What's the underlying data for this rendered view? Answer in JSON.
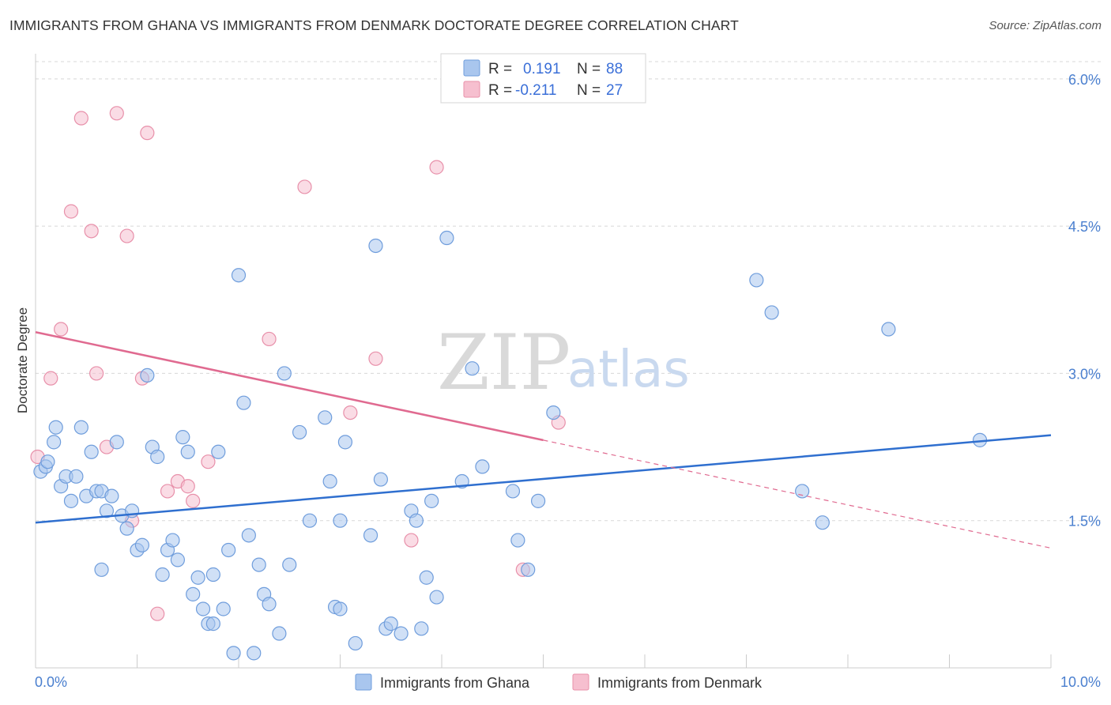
{
  "header": {
    "title": "IMMIGRANTS FROM GHANA VS IMMIGRANTS FROM DENMARK DOCTORATE DEGREE CORRELATION CHART",
    "source": "Source: ZipAtlas.com"
  },
  "watermark": {
    "zip": "ZIP",
    "atlas": "atlas"
  },
  "colors": {
    "ghana_fill": "#a9c6ee",
    "ghana_stroke": "#6f9ddc",
    "ghana_line": "#2f6fcf",
    "denmark_fill": "#f6bfcf",
    "denmark_stroke": "#e890aa",
    "denmark_line": "#e06a90",
    "grid": "#d8d8d8",
    "axis_text": "#4a7fcf"
  },
  "legend": {
    "rows": [
      {
        "r_label": "R =",
        "r_value": "0.191",
        "n_label": "N =",
        "n_value": "88"
      },
      {
        "r_label": "R =",
        "r_value": "-0.211",
        "n_label": "N =",
        "n_value": "27"
      }
    ]
  },
  "chart_data": {
    "type": "scatter",
    "title": "IMMIGRANTS FROM GHANA VS IMMIGRANTS FROM DENMARK DOCTORATE DEGREE CORRELATION CHART",
    "xlabel": "",
    "ylabel": "Doctorate Degree",
    "xlim": [
      0,
      10
    ],
    "ylim": [
      0,
      6.2
    ],
    "x_tick_labels": [
      "0.0%",
      "10.0%"
    ],
    "y_tick_labels": [
      "1.5%",
      "3.0%",
      "4.5%",
      "6.0%"
    ],
    "y_ticks": [
      1.5,
      3.0,
      4.5,
      6.0
    ],
    "grid": true,
    "legend_position": "top-center",
    "series": [
      {
        "name": "Immigrants from Ghana",
        "R": 0.191,
        "N": 88,
        "trend": {
          "x": [
            0,
            10
          ],
          "y": [
            1.48,
            2.37
          ]
        },
        "points": [
          [
            0.05,
            2.0
          ],
          [
            0.1,
            2.05
          ],
          [
            0.12,
            2.1
          ],
          [
            0.18,
            2.3
          ],
          [
            0.2,
            2.45
          ],
          [
            0.25,
            1.85
          ],
          [
            0.3,
            1.95
          ],
          [
            0.35,
            1.7
          ],
          [
            0.4,
            1.95
          ],
          [
            0.45,
            2.45
          ],
          [
            0.5,
            1.75
          ],
          [
            0.55,
            2.2
          ],
          [
            0.6,
            1.8
          ],
          [
            0.65,
            1.8
          ],
          [
            0.7,
            1.6
          ],
          [
            0.75,
            1.75
          ],
          [
            0.8,
            2.3
          ],
          [
            0.85,
            1.55
          ],
          [
            0.9,
            1.42
          ],
          [
            0.95,
            1.6
          ],
          [
            1.0,
            1.2
          ],
          [
            1.05,
            1.25
          ],
          [
            1.1,
            2.98
          ],
          [
            1.15,
            2.25
          ],
          [
            1.2,
            2.15
          ],
          [
            1.25,
            0.95
          ],
          [
            1.3,
            1.2
          ],
          [
            1.35,
            1.3
          ],
          [
            1.4,
            1.1
          ],
          [
            1.45,
            2.35
          ],
          [
            1.5,
            2.2
          ],
          [
            1.55,
            0.75
          ],
          [
            1.6,
            0.92
          ],
          [
            1.65,
            0.6
          ],
          [
            1.7,
            0.45
          ],
          [
            1.75,
            0.95
          ],
          [
            1.8,
            2.2
          ],
          [
            1.85,
            0.6
          ],
          [
            1.9,
            1.2
          ],
          [
            1.95,
            0.15
          ],
          [
            2.0,
            4.0
          ],
          [
            2.05,
            2.7
          ],
          [
            2.1,
            1.35
          ],
          [
            2.15,
            0.15
          ],
          [
            2.2,
            1.05
          ],
          [
            2.25,
            0.75
          ],
          [
            2.3,
            0.65
          ],
          [
            2.4,
            0.35
          ],
          [
            2.45,
            3.0
          ],
          [
            2.5,
            1.05
          ],
          [
            2.6,
            2.4
          ],
          [
            2.7,
            1.5
          ],
          [
            2.85,
            2.55
          ],
          [
            2.9,
            1.9
          ],
          [
            2.95,
            0.62
          ],
          [
            3.0,
            1.5
          ],
          [
            3.05,
            2.3
          ],
          [
            3.15,
            0.25
          ],
          [
            3.3,
            1.35
          ],
          [
            3.35,
            4.3
          ],
          [
            3.4,
            1.92
          ],
          [
            3.45,
            0.4
          ],
          [
            3.5,
            0.45
          ],
          [
            3.6,
            0.35
          ],
          [
            3.7,
            1.6
          ],
          [
            3.75,
            1.5
          ],
          [
            3.8,
            0.4
          ],
          [
            3.85,
            0.92
          ],
          [
            3.9,
            1.7
          ],
          [
            3.95,
            0.72
          ],
          [
            4.05,
            4.38
          ],
          [
            4.2,
            1.9
          ],
          [
            4.3,
            3.05
          ],
          [
            4.4,
            2.05
          ],
          [
            4.7,
            1.8
          ],
          [
            4.75,
            1.3
          ],
          [
            4.85,
            1.0
          ],
          [
            4.95,
            1.7
          ],
          [
            5.1,
            2.6
          ],
          [
            7.1,
            3.95
          ],
          [
            7.25,
            3.62
          ],
          [
            7.55,
            1.8
          ],
          [
            7.75,
            1.48
          ],
          [
            8.4,
            3.45
          ],
          [
            9.3,
            2.32
          ],
          [
            0.65,
            1.0
          ],
          [
            1.75,
            0.45
          ],
          [
            3.0,
            0.6
          ]
        ]
      },
      {
        "name": "Immigrants from Denmark",
        "R": -0.211,
        "N": 27,
        "trend": {
          "x": [
            0,
            5.0
          ],
          "y": [
            3.42,
            2.32
          ]
        },
        "trend_extrapolated": {
          "x": [
            5.0,
            10
          ],
          "y": [
            2.32,
            1.22
          ]
        },
        "points": [
          [
            0.02,
            2.15
          ],
          [
            0.15,
            2.95
          ],
          [
            0.25,
            3.45
          ],
          [
            0.35,
            4.65
          ],
          [
            0.45,
            5.6
          ],
          [
            0.55,
            4.45
          ],
          [
            0.6,
            3.0
          ],
          [
            0.7,
            2.25
          ],
          [
            0.8,
            5.65
          ],
          [
            0.9,
            4.4
          ],
          [
            0.95,
            1.5
          ],
          [
            1.05,
            2.95
          ],
          [
            1.1,
            5.45
          ],
          [
            1.2,
            0.55
          ],
          [
            1.3,
            1.8
          ],
          [
            1.4,
            1.9
          ],
          [
            1.5,
            1.85
          ],
          [
            1.55,
            1.7
          ],
          [
            1.7,
            2.1
          ],
          [
            2.3,
            3.35
          ],
          [
            2.65,
            4.9
          ],
          [
            3.1,
            2.6
          ],
          [
            3.35,
            3.15
          ],
          [
            3.7,
            1.3
          ],
          [
            3.95,
            5.1
          ],
          [
            4.8,
            1.0
          ],
          [
            5.15,
            2.5
          ]
        ]
      }
    ]
  },
  "bottom_legend": {
    "items": [
      {
        "label": "Immigrants from Ghana"
      },
      {
        "label": "Immigrants from Denmark"
      }
    ]
  }
}
